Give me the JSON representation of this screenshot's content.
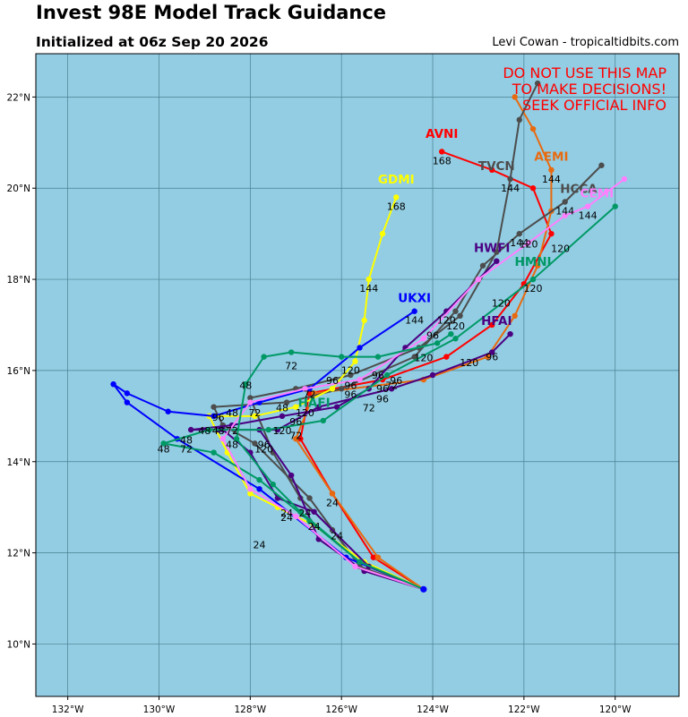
{
  "header": {
    "title": "Invest 98E Model Track Guidance",
    "subtitle": "Initialized at 06z Sep 20 2026",
    "credit": "Levi Cowan - tropicaltidbits.com"
  },
  "warning": [
    "DO NOT USE THIS MAP",
    "TO MAKE DECISIONS!",
    "SEEK OFFICIAL INFO"
  ],
  "colors": {
    "ocean": "#92cde3",
    "grid": "#4a7f92",
    "warning": "#ff0000",
    "init_point": "#0000ff"
  },
  "axes": {
    "lon_range": [
      -132.7,
      -118.6
    ],
    "lat_range": [
      8.85,
      22.95
    ],
    "lon_ticks": [
      -132,
      -130,
      -128,
      -126,
      -124,
      -122,
      -120
    ],
    "lat_ticks": [
      10,
      12,
      14,
      16,
      18,
      20,
      22
    ],
    "lon_labels": [
      "132°W",
      "130°W",
      "128°W",
      "126°W",
      "124°W",
      "122°W",
      "120°W"
    ],
    "lat_labels": [
      "10°N",
      "12°N",
      "14°N",
      "16°N",
      "18°N",
      "20°N",
      "22°N"
    ]
  },
  "chart_data": {
    "type": "map-track",
    "initial_position": [
      -124.2,
      11.2
    ],
    "models": [
      {
        "name": "AVNI",
        "color": "#ff0000",
        "label_pos": [
          -123.8,
          21.1
        ],
        "points": [
          [
            -124.2,
            11.2
          ],
          [
            -125.3,
            11.9
          ],
          [
            -126.2,
            13.3
          ],
          [
            -126.9,
            14.5
          ],
          [
            -126.7,
            15.5
          ],
          [
            -125.1,
            15.8
          ],
          [
            -123.7,
            16.3
          ],
          [
            -122.7,
            17.0
          ],
          [
            -122.0,
            17.9
          ],
          [
            -121.4,
            19.0
          ],
          [
            -121.8,
            20.0
          ],
          [
            -122.7,
            20.4
          ],
          [
            -123.8,
            20.8
          ]
        ],
        "labels": [
          [
            -126.2,
            13.3,
            "24"
          ],
          [
            -125.1,
            15.8,
            "96"
          ],
          [
            -123.8,
            20.8,
            "168"
          ]
        ]
      },
      {
        "name": "AEMI",
        "color": "#e86a10",
        "label_pos": [
          -121.4,
          20.6
        ],
        "points": [
          [
            -124.2,
            11.2
          ],
          [
            -125.2,
            11.9
          ],
          [
            -126.2,
            13.3
          ],
          [
            -127.0,
            14.5
          ],
          [
            -126.6,
            15.5
          ],
          [
            -124.2,
            15.8
          ],
          [
            -122.8,
            16.3
          ],
          [
            -122.2,
            17.2
          ],
          [
            -121.7,
            18.3
          ],
          [
            -121.4,
            19.5
          ],
          [
            -121.4,
            20.4
          ],
          [
            -121.8,
            21.3
          ],
          [
            -122.2,
            22.0
          ]
        ],
        "labels": [
          [
            -121.4,
            20.4,
            "144"
          ]
        ]
      },
      {
        "name": "TVCN",
        "color": "#4d4d4d",
        "label_pos": [
          -122.6,
          20.4
        ],
        "points": [
          [
            -124.2,
            11.2
          ],
          [
            -125.5,
            11.6
          ],
          [
            -126.2,
            12.5
          ],
          [
            -126.9,
            13.2
          ],
          [
            -127.5,
            14.2
          ],
          [
            -128.0,
            15.4
          ],
          [
            -127.0,
            15.6
          ],
          [
            -125.8,
            15.9
          ],
          [
            -124.3,
            16.5
          ],
          [
            -123.4,
            17.2
          ],
          [
            -122.6,
            18.6
          ],
          [
            -122.3,
            20.2
          ],
          [
            -122.1,
            21.5
          ],
          [
            -121.7,
            22.3
          ]
        ],
        "labels": [
          [
            -122.3,
            20.2,
            "144"
          ]
        ]
      },
      {
        "name": "HCCA",
        "color": "#4d4d4d",
        "label_pos": [
          -120.8,
          19.9
        ],
        "points": [
          [
            -124.2,
            11.2
          ],
          [
            -125.6,
            11.7
          ],
          [
            -126.7,
            13.2
          ],
          [
            -127.9,
            14.4
          ],
          [
            -128.6,
            14.8
          ],
          [
            -128.8,
            15.2
          ],
          [
            -127.2,
            15.3
          ],
          [
            -126.0,
            15.6
          ],
          [
            -124.4,
            16.3
          ],
          [
            -123.5,
            17.3
          ],
          [
            -122.9,
            18.3
          ],
          [
            -122.1,
            19.0
          ],
          [
            -121.1,
            19.7
          ],
          [
            -120.3,
            20.5
          ]
        ],
        "labels": [
          [
            -122.1,
            19.0,
            "144"
          ],
          [
            -121.1,
            19.7,
            "144"
          ]
        ]
      },
      {
        "name": "GDMI",
        "color": "#ffff00",
        "label_pos": [
          -124.8,
          20.1
        ],
        "points": [
          [
            -124.2,
            11.2
          ],
          [
            -125.5,
            11.8
          ],
          [
            -126.6,
            12.6
          ],
          [
            -127.4,
            13.0
          ],
          [
            -128.0,
            13.3
          ],
          [
            -128.5,
            14.2
          ],
          [
            -128.9,
            15.0
          ],
          [
            -127.9,
            15.0
          ],
          [
            -127.0,
            15.2
          ],
          [
            -126.2,
            15.6
          ],
          [
            -125.7,
            16.2
          ],
          [
            -125.5,
            17.1
          ],
          [
            -125.4,
            18.0
          ],
          [
            -125.1,
            19.0
          ],
          [
            -124.8,
            19.8
          ]
        ],
        "labels": [
          [
            -125.4,
            18.0,
            "144"
          ],
          [
            -124.8,
            19.8,
            "168"
          ]
        ]
      },
      {
        "name": "UKXI",
        "color": "#0000ff",
        "label_pos": [
          -124.4,
          17.5
        ],
        "points": [
          [
            -124.2,
            11.2
          ],
          [
            -125.9,
            11.9
          ],
          [
            -127.8,
            13.4
          ],
          [
            -129.6,
            14.5
          ],
          [
            -130.7,
            15.3
          ],
          [
            -131.0,
            15.7
          ],
          [
            -130.7,
            15.5
          ],
          [
            -129.8,
            15.1
          ],
          [
            -128.8,
            15.0
          ],
          [
            -127.8,
            15.3
          ],
          [
            -126.7,
            15.6
          ],
          [
            -125.6,
            16.5
          ],
          [
            -124.4,
            17.3
          ]
        ],
        "labels": [
          [
            -124.4,
            17.3,
            "144"
          ]
        ]
      },
      {
        "name": "HWFI",
        "color": "#4b0082",
        "label_pos": [
          -122.7,
          18.6
        ],
        "points": [
          [
            -124.2,
            11.2
          ],
          [
            -125.4,
            11.7
          ],
          [
            -126.6,
            12.9
          ],
          [
            -127.4,
            13.2
          ],
          [
            -128.0,
            14.2
          ],
          [
            -128.6,
            14.7
          ],
          [
            -129.3,
            14.7
          ],
          [
            -128.4,
            14.8
          ],
          [
            -127.3,
            15.0
          ],
          [
            -126.1,
            15.2
          ],
          [
            -125.4,
            15.6
          ],
          [
            -124.6,
            16.5
          ],
          [
            -123.7,
            17.3
          ],
          [
            -122.6,
            18.4
          ]
        ],
        "labels": [
          [
            -123.7,
            17.3,
            "120"
          ]
        ]
      },
      {
        "name": "HFAI",
        "color": "#4b0082",
        "label_pos": [
          -122.6,
          17.0
        ],
        "points": [
          [
            -124.2,
            11.2
          ],
          [
            -125.5,
            11.6
          ],
          [
            -126.5,
            12.3
          ],
          [
            -127.1,
            13.7
          ],
          [
            -127.8,
            14.7
          ],
          [
            -128.7,
            14.7
          ],
          [
            -127.4,
            14.7
          ],
          [
            -126.5,
            15.2
          ],
          [
            -124.9,
            15.6
          ],
          [
            -124.0,
            15.9
          ],
          [
            -122.7,
            16.4
          ],
          [
            -122.3,
            16.8
          ]
        ],
        "labels": [
          [
            -122.7,
            16.5,
            "96"
          ]
        ]
      },
      {
        "name": "HMNI",
        "color": "#009966",
        "label_pos": [
          -121.8,
          18.3
        ],
        "points": [
          [
            -124.2,
            11.2
          ],
          [
            -125.6,
            11.8
          ],
          [
            -126.7,
            12.7
          ],
          [
            -127.8,
            13.6
          ],
          [
            -128.8,
            14.2
          ],
          [
            -129.9,
            14.4
          ],
          [
            -128.9,
            14.7
          ],
          [
            -127.6,
            14.7
          ],
          [
            -126.4,
            14.9
          ],
          [
            -125.0,
            15.9
          ],
          [
            -123.5,
            16.7
          ],
          [
            -121.8,
            18.0
          ],
          [
            -120.0,
            19.6
          ]
        ],
        "labels": [
          [
            -121.8,
            18.0,
            "120"
          ]
        ]
      },
      {
        "name": "CEMI",
        "color": "#ff80ff",
        "label_pos": [
          -120.4,
          19.8
        ],
        "points": [
          [
            -124.2,
            11.2
          ],
          [
            -125.7,
            11.7
          ],
          [
            -127.0,
            12.8
          ],
          [
            -128.0,
            13.4
          ],
          [
            -128.6,
            14.5
          ],
          [
            -128.0,
            15.3
          ],
          [
            -126.8,
            15.6
          ],
          [
            -125.6,
            15.8
          ],
          [
            -124.2,
            16.7
          ],
          [
            -123.0,
            18.0
          ],
          [
            -121.9,
            18.8
          ],
          [
            -121.1,
            19.4
          ],
          [
            -120.6,
            19.6
          ],
          [
            -119.8,
            20.2
          ]
        ],
        "labels": [
          [
            -120.6,
            19.6,
            "144"
          ]
        ]
      },
      {
        "name": "HAFI",
        "color": "#009966",
        "label_pos": [
          -126.6,
          15.2
        ],
        "points": [
          [
            -124.2,
            11.2
          ],
          [
            -125.6,
            11.8
          ],
          [
            -126.9,
            12.9
          ],
          [
            -127.5,
            13.5
          ],
          [
            -128.3,
            14.5
          ],
          [
            -128.1,
            15.7
          ],
          [
            -127.7,
            16.3
          ],
          [
            -127.1,
            16.4
          ],
          [
            -126.0,
            16.3
          ],
          [
            -125.2,
            16.3
          ],
          [
            -123.9,
            16.6
          ],
          [
            -123.6,
            16.8
          ]
        ],
        "labels": [
          [
            -127.1,
            16.3,
            "72"
          ],
          [
            -125.8,
            16.2,
            "120"
          ],
          [
            -125.2,
            16.1,
            "96"
          ]
        ]
      }
    ],
    "hour_labels": [
      [
        -127.8,
        12.1,
        "24"
      ],
      [
        -127.2,
        12.8,
        "24"
      ],
      [
        -127.2,
        12.7,
        "24"
      ],
      [
        -126.8,
        12.8,
        "24"
      ],
      [
        -126.6,
        12.5,
        "24"
      ],
      [
        -126.1,
        12.3,
        "24"
      ],
      [
        -129.9,
        14.2,
        "48"
      ],
      [
        -129.4,
        14.4,
        "48"
      ],
      [
        -129.0,
        14.6,
        "48"
      ],
      [
        -128.7,
        14.6,
        "48"
      ],
      [
        -128.4,
        15.0,
        "48"
      ],
      [
        -128.4,
        14.3,
        "48"
      ],
      [
        -127.3,
        15.1,
        "48"
      ],
      [
        -128.1,
        15.6,
        "48"
      ],
      [
        -129.4,
        14.2,
        "72"
      ],
      [
        -128.4,
        14.6,
        "72"
      ],
      [
        -127.9,
        15.0,
        "72"
      ],
      [
        -127.0,
        14.5,
        "72"
      ],
      [
        -125.4,
        15.1,
        "72"
      ],
      [
        -124.9,
        15.6,
        "72"
      ],
      [
        -126.7,
        15.4,
        "72"
      ],
      [
        -128.7,
        14.9,
        "96"
      ],
      [
        -127.7,
        14.3,
        "96"
      ],
      [
        -127.0,
        14.8,
        "96"
      ],
      [
        -125.8,
        15.4,
        "96"
      ],
      [
        -125.1,
        15.3,
        "96"
      ],
      [
        -124.8,
        15.7,
        "96"
      ],
      [
        -124.0,
        16.7,
        "96"
      ],
      [
        -125.8,
        15.6,
        "96"
      ],
      [
        -126.2,
        15.7,
        "96"
      ],
      [
        -127.7,
        14.2,
        "120"
      ],
      [
        -126.8,
        15.0,
        "120"
      ],
      [
        -127.3,
        14.6,
        "120"
      ],
      [
        -124.2,
        16.2,
        "120"
      ],
      [
        -123.5,
        16.9,
        "120"
      ],
      [
        -123.2,
        16.1,
        "120"
      ],
      [
        -122.5,
        17.4,
        "120"
      ],
      [
        -121.9,
        18.7,
        "120"
      ],
      [
        -121.2,
        18.6,
        "120"
      ]
    ]
  }
}
